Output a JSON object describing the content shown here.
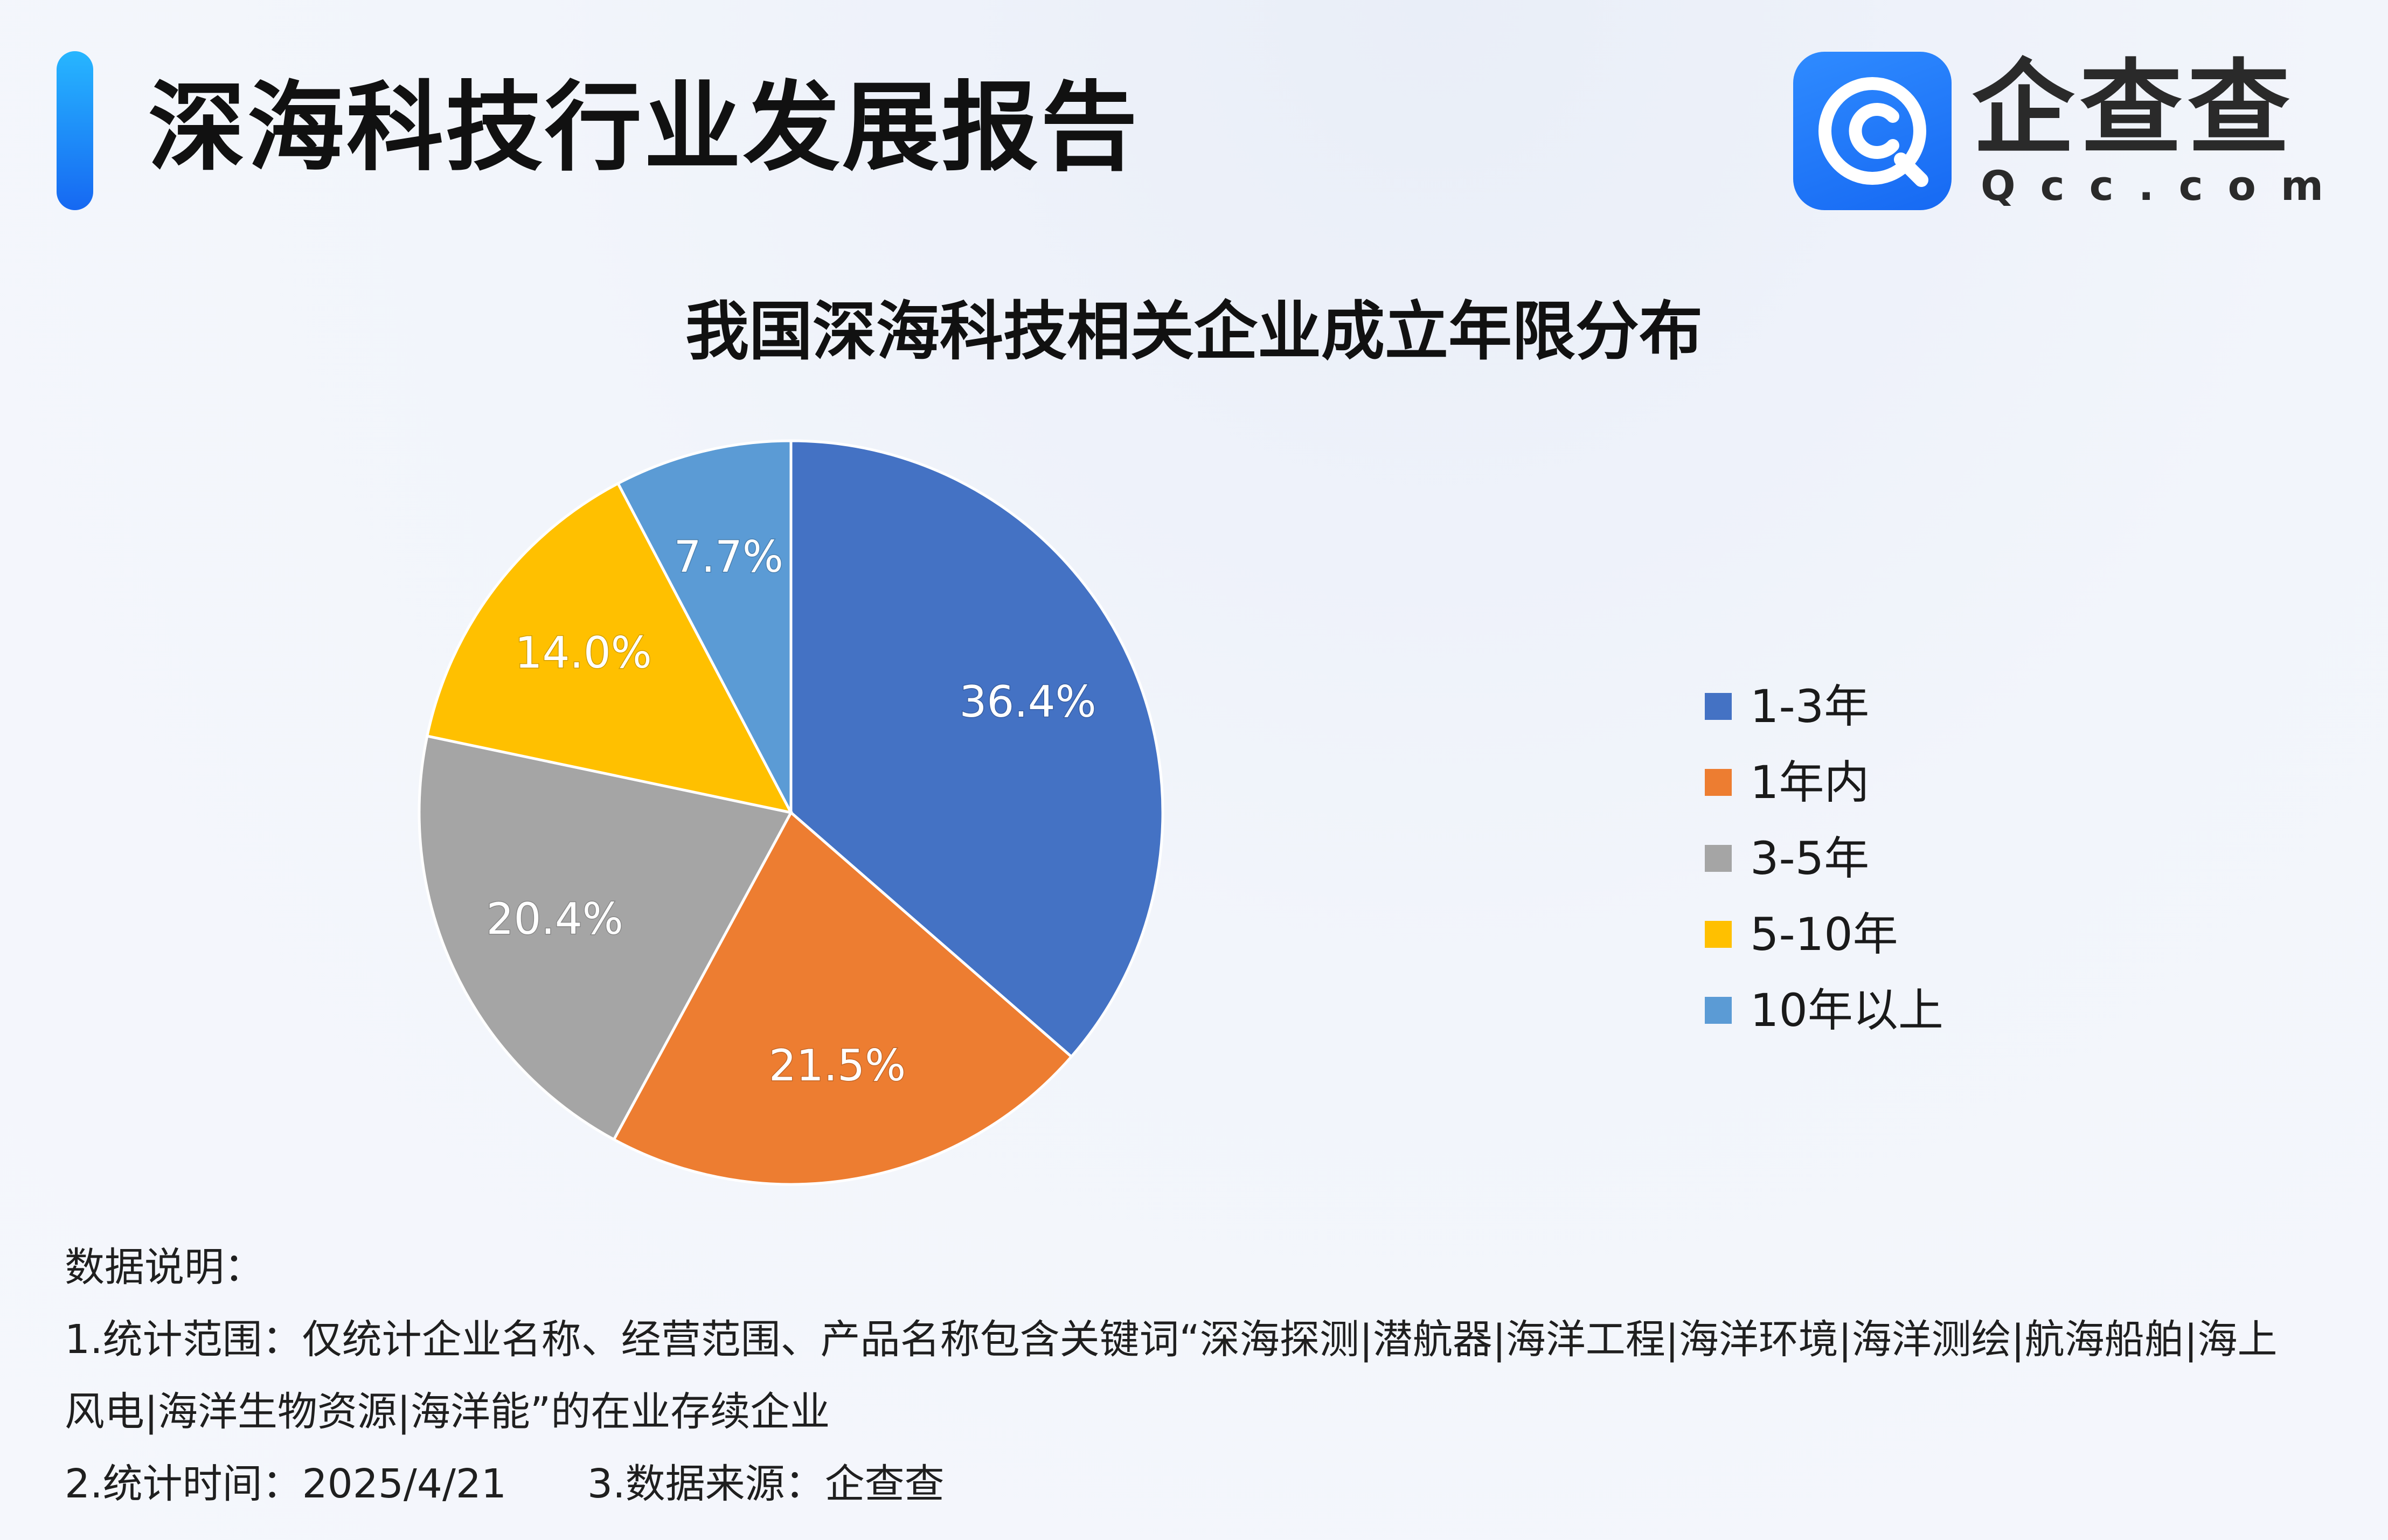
{
  "header": {
    "report_title": "深海科技行业发展报告",
    "logo_cn": "企查查",
    "logo_en": "Qcc.com"
  },
  "colors": {
    "accent": "#1a7cf7",
    "slice_1": "#4472C4",
    "slice_2": "#ED7D31",
    "slice_3": "#A5A5A5",
    "slice_4": "#FFC000",
    "slice_5": "#5B9BD5"
  },
  "chart_data": {
    "type": "pie",
    "title": "我国深海科技相关企业成立年限分布",
    "categories": [
      "1-3年",
      "1年内",
      "3-5年",
      "5-10年",
      "10年以上"
    ],
    "values": [
      36.4,
      21.5,
      20.4,
      14.0,
      7.7
    ],
    "value_labels": [
      "36.4%",
      "21.5%",
      "20.4%",
      "14.0%",
      "7.7%"
    ],
    "colors": [
      "#4472C4",
      "#ED7D31",
      "#A5A5A5",
      "#FFC000",
      "#5B9BD5"
    ],
    "start_angle": "12 o'clock",
    "direction": "clockwise",
    "legend_position": "right"
  },
  "notes": {
    "heading": "数据说明：",
    "line1": "1.统计范围：仅统计企业名称、经营范围、产品名称包含关键词“深海探测|潜航器|海洋工程|海洋环境|海洋测绘|航海船舶|海上",
    "line2": "风电|海洋生物资源|海洋能”的在业存续企业",
    "time": "2.统计时间：2025/4/21",
    "source": "3.数据来源：企查查"
  }
}
